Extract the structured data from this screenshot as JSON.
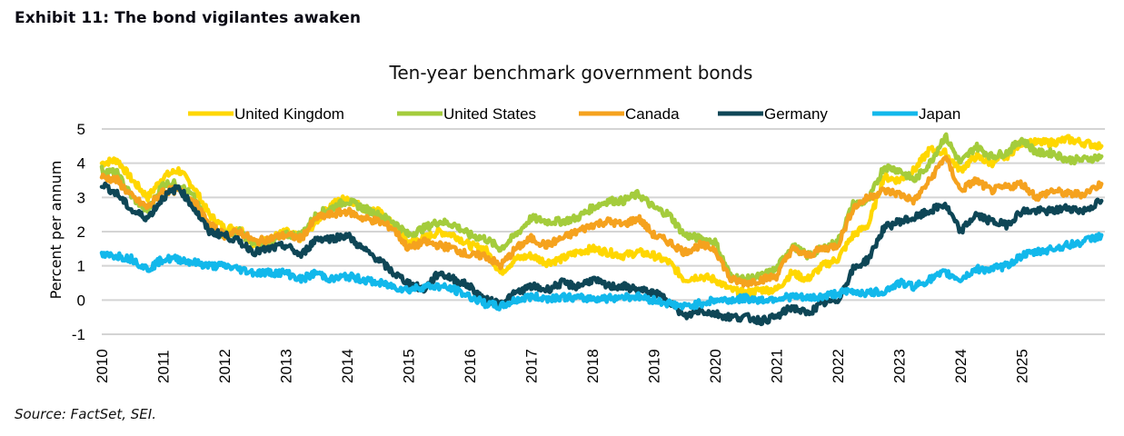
{
  "exhibit_title": "Exhibit 11: The bond vigilantes awaken",
  "source": "Source: FactSet, SEI.",
  "chart_data": {
    "type": "line",
    "title": "Ten-year benchmark government bonds",
    "xlabel": "",
    "ylabel": "Percent per annum",
    "ylim": [
      -1,
      5
    ],
    "xlim": [
      2010,
      2026.35
    ],
    "yticks": [
      5,
      4,
      3,
      2,
      1,
      0,
      -1
    ],
    "xticks": [
      "2010",
      "2011",
      "2012",
      "2013",
      "2014",
      "2015",
      "2016",
      "2017",
      "2018",
      "2019",
      "2020",
      "2021",
      "2022",
      "2023",
      "2024",
      "2025"
    ],
    "grid": true,
    "legend_position": "top-center",
    "x": [
      2010.0,
      2010.25,
      2010.5,
      2010.75,
      2011.0,
      2011.25,
      2011.5,
      2011.75,
      2012.0,
      2012.25,
      2012.5,
      2012.75,
      2013.0,
      2013.25,
      2013.5,
      2013.75,
      2014.0,
      2014.25,
      2014.5,
      2014.75,
      2015.0,
      2015.25,
      2015.5,
      2015.75,
      2016.0,
      2016.25,
      2016.5,
      2016.75,
      2017.0,
      2017.25,
      2017.5,
      2017.75,
      2018.0,
      2018.25,
      2018.5,
      2018.75,
      2019.0,
      2019.25,
      2019.5,
      2019.75,
      2020.0,
      2020.25,
      2020.5,
      2020.75,
      2021.0,
      2021.25,
      2021.5,
      2021.75,
      2022.0,
      2022.25,
      2022.5,
      2022.75,
      2023.0,
      2023.25,
      2023.5,
      2023.75,
      2024.0,
      2024.25,
      2024.5,
      2024.75,
      2025.0,
      2025.25,
      2025.5,
      2025.75,
      2026.0,
      2026.3
    ],
    "series": [
      {
        "name": "United Kingdom",
        "color": "#FFD700",
        "values": [
          4.0,
          4.1,
          3.5,
          3.0,
          3.6,
          3.8,
          3.3,
          2.5,
          2.1,
          2.1,
          1.6,
          1.8,
          2.0,
          1.8,
          2.3,
          2.8,
          3.0,
          2.7,
          2.6,
          2.2,
          1.7,
          1.8,
          2.0,
          1.9,
          1.6,
          1.5,
          0.8,
          1.2,
          1.3,
          1.1,
          1.2,
          1.4,
          1.5,
          1.4,
          1.3,
          1.4,
          1.3,
          1.1,
          0.6,
          0.7,
          0.6,
          0.3,
          0.2,
          0.3,
          0.3,
          0.8,
          0.6,
          1.0,
          1.2,
          1.9,
          2.2,
          3.6,
          3.5,
          3.8,
          4.4,
          4.3,
          3.8,
          4.2,
          4.0,
          4.2,
          4.6,
          4.6,
          4.6,
          4.7,
          4.6,
          4.5
        ]
      },
      {
        "name": "United States",
        "color": "#A4CC3C",
        "values": [
          3.8,
          3.7,
          3.0,
          2.6,
          3.4,
          3.4,
          3.0,
          2.1,
          1.9,
          2.0,
          1.6,
          1.7,
          1.9,
          1.9,
          2.5,
          2.7,
          2.9,
          2.7,
          2.5,
          2.3,
          1.9,
          2.1,
          2.3,
          2.2,
          1.9,
          1.8,
          1.5,
          1.9,
          2.4,
          2.3,
          2.3,
          2.4,
          2.7,
          2.9,
          2.9,
          3.1,
          2.7,
          2.5,
          1.9,
          1.8,
          1.7,
          0.7,
          0.6,
          0.7,
          0.9,
          1.6,
          1.3,
          1.5,
          1.7,
          2.8,
          2.9,
          3.9,
          3.8,
          3.5,
          4.0,
          4.8,
          4.0,
          4.5,
          4.2,
          4.3,
          4.7,
          4.3,
          4.3,
          4.1,
          4.1,
          4.2
        ]
      },
      {
        "name": "Canada",
        "color": "#F5A21E",
        "values": [
          3.6,
          3.5,
          3.0,
          2.7,
          3.2,
          3.2,
          2.9,
          2.2,
          1.9,
          2.0,
          1.7,
          1.8,
          1.9,
          1.8,
          2.4,
          2.5,
          2.6,
          2.4,
          2.3,
          2.1,
          1.5,
          1.7,
          1.6,
          1.5,
          1.3,
          1.3,
          1.0,
          1.5,
          1.8,
          1.6,
          1.8,
          2.0,
          2.2,
          2.3,
          2.2,
          2.4,
          1.9,
          1.7,
          1.4,
          1.6,
          1.5,
          0.6,
          0.5,
          0.6,
          0.7,
          1.5,
          1.3,
          1.5,
          1.6,
          2.7,
          3.0,
          3.2,
          3.1,
          2.9,
          3.5,
          4.2,
          3.2,
          3.5,
          3.2,
          3.3,
          3.4,
          3.0,
          3.2,
          3.1,
          3.1,
          3.4
        ]
      },
      {
        "name": "Germany",
        "color": "#0E4656",
        "values": [
          3.4,
          3.1,
          2.6,
          2.4,
          3.0,
          3.3,
          2.7,
          2.0,
          1.9,
          1.7,
          1.4,
          1.5,
          1.6,
          1.3,
          1.8,
          1.8,
          1.9,
          1.5,
          1.2,
          0.8,
          0.5,
          0.3,
          0.8,
          0.6,
          0.4,
          0.0,
          -0.1,
          0.2,
          0.4,
          0.3,
          0.5,
          0.4,
          0.6,
          0.4,
          0.4,
          0.3,
          0.2,
          0.0,
          -0.5,
          -0.3,
          -0.4,
          -0.5,
          -0.5,
          -0.6,
          -0.5,
          -0.2,
          -0.4,
          -0.1,
          0.0,
          0.9,
          1.2,
          2.1,
          2.3,
          2.4,
          2.6,
          2.8,
          2.0,
          2.5,
          2.3,
          2.2,
          2.6,
          2.6,
          2.6,
          2.7,
          2.6,
          2.9
        ]
      },
      {
        "name": "Japan",
        "color": "#12B8EB",
        "values": [
          1.3,
          1.3,
          1.2,
          0.9,
          1.2,
          1.2,
          1.1,
          1.0,
          1.0,
          0.9,
          0.8,
          0.8,
          0.8,
          0.6,
          0.8,
          0.6,
          0.7,
          0.6,
          0.5,
          0.4,
          0.3,
          0.4,
          0.4,
          0.3,
          0.1,
          -0.1,
          -0.2,
          0.0,
          0.1,
          0.05,
          0.1,
          0.05,
          0.05,
          0.05,
          0.1,
          0.1,
          0.0,
          -0.1,
          -0.2,
          -0.1,
          0.0,
          0.0,
          0.05,
          0.0,
          0.05,
          0.1,
          0.05,
          0.1,
          0.2,
          0.25,
          0.2,
          0.25,
          0.5,
          0.4,
          0.6,
          0.8,
          0.6,
          0.9,
          0.9,
          1.0,
          1.3,
          1.4,
          1.5,
          1.6,
          1.7,
          1.9
        ]
      }
    ]
  }
}
